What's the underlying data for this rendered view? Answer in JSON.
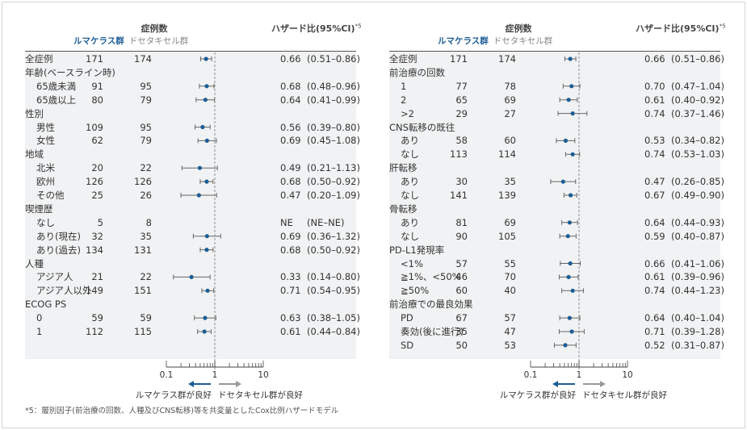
{
  "colors": {
    "accent": "#1c5d94",
    "ci_line": "#666666",
    "arrow_good_rm": "#1c5d94",
    "arrow_good_dt": "#999999",
    "table_bg": "#f1f2f3"
  },
  "header": {
    "count_title": "症例数",
    "arm_rm": "ルマケラス群",
    "arm_dt": "ドセタキセル群",
    "hr_title": "ハザード比(95%CI)",
    "hr_sup": "*5"
  },
  "axis": {
    "ticks": [
      "0.1",
      "1",
      "10"
    ],
    "favors_rm": "ルマケラス群が良好",
    "favors_dt": "ドセタキセル群が良好"
  },
  "footnote": "*5：層別因子(前治療の回数、人種及びCNS転移)等を共変量としたCox比例ハザードモデル",
  "chart_data": [
    {
      "type": "forest",
      "xscale": "log",
      "xlim": [
        0.1,
        10
      ],
      "reference_line": 1,
      "rows": [
        {
          "label": "全症例",
          "indent": false,
          "n_rm": "171",
          "n_dt": "174",
          "hr_text": "0.66",
          "ci_text": "(0.51–0.86)",
          "hr": 0.66,
          "lo": 0.51,
          "hi": 0.86
        },
        {
          "label": "年齢(ベースライン時)",
          "header": true
        },
        {
          "label": "65歳未満",
          "indent": true,
          "n_rm": "91",
          "n_dt": "95",
          "hr_text": "0.68",
          "ci_text": "(0.48–0.96)",
          "hr": 0.68,
          "lo": 0.48,
          "hi": 0.96
        },
        {
          "label": "65歳以上",
          "indent": true,
          "n_rm": "80",
          "n_dt": "79",
          "hr_text": "0.64",
          "ci_text": "(0.41–0.99)",
          "hr": 0.64,
          "lo": 0.41,
          "hi": 0.99
        },
        {
          "label": "性別",
          "header": true
        },
        {
          "label": "男性",
          "indent": true,
          "n_rm": "109",
          "n_dt": "95",
          "hr_text": "0.56",
          "ci_text": "(0.39–0.80)",
          "hr": 0.56,
          "lo": 0.39,
          "hi": 0.8
        },
        {
          "label": "女性",
          "indent": true,
          "n_rm": "62",
          "n_dt": "79",
          "hr_text": "0.69",
          "ci_text": "(0.45–1.08)",
          "hr": 0.69,
          "lo": 0.45,
          "hi": 1.08
        },
        {
          "label": "地域",
          "header": true
        },
        {
          "label": "北米",
          "indent": true,
          "n_rm": "20",
          "n_dt": "22",
          "hr_text": "0.49",
          "ci_text": "(0.21–1.13)",
          "hr": 0.49,
          "lo": 0.21,
          "hi": 1.13
        },
        {
          "label": "欧州",
          "indent": true,
          "n_rm": "126",
          "n_dt": "126",
          "hr_text": "0.68",
          "ci_text": "(0.50–0.92)",
          "hr": 0.68,
          "lo": 0.5,
          "hi": 0.92
        },
        {
          "label": "その他",
          "indent": true,
          "n_rm": "25",
          "n_dt": "26",
          "hr_text": "0.47",
          "ci_text": "(0.20–1.09)",
          "hr": 0.47,
          "lo": 0.2,
          "hi": 1.09
        },
        {
          "label": "喫煙歴",
          "header": true
        },
        {
          "label": "なし",
          "indent": true,
          "n_rm": "5",
          "n_dt": "8",
          "hr_text": "NE",
          "ci_text": "(NE–NE)"
        },
        {
          "label": "あり(現在)",
          "indent": true,
          "n_rm": "32",
          "n_dt": "35",
          "hr_text": "0.69",
          "ci_text": "(0.36–1.32)",
          "hr": 0.69,
          "lo": 0.36,
          "hi": 1.32
        },
        {
          "label": "あり(過去)",
          "indent": true,
          "n_rm": "134",
          "n_dt": "131",
          "hr_text": "0.68",
          "ci_text": "(0.50–0.92)",
          "hr": 0.68,
          "lo": 0.5,
          "hi": 0.92
        },
        {
          "label": "人種",
          "header": true
        },
        {
          "label": "アジア人",
          "indent": true,
          "n_rm": "21",
          "n_dt": "22",
          "hr_text": "0.33",
          "ci_text": "(0.14–0.80)",
          "hr": 0.33,
          "lo": 0.14,
          "hi": 0.8
        },
        {
          "label": "アジア人以外",
          "indent": true,
          "n_rm": "149",
          "n_dt": "151",
          "hr_text": "0.71",
          "ci_text": "(0.54–0.95)",
          "hr": 0.71,
          "lo": 0.54,
          "hi": 0.95
        },
        {
          "label": "ECOG PS",
          "header": true
        },
        {
          "label": "0",
          "indent": true,
          "n_rm": "59",
          "n_dt": "59",
          "hr_text": "0.63",
          "ci_text": "(0.38–1.05)",
          "hr": 0.63,
          "lo": 0.38,
          "hi": 1.05
        },
        {
          "label": "1",
          "indent": true,
          "n_rm": "112",
          "n_dt": "115",
          "hr_text": "0.61",
          "ci_text": "(0.44–0.84)",
          "hr": 0.61,
          "lo": 0.44,
          "hi": 0.84
        }
      ]
    },
    {
      "type": "forest",
      "xscale": "log",
      "xlim": [
        0.1,
        10
      ],
      "reference_line": 1,
      "rows": [
        {
          "label": "全症例",
          "indent": false,
          "n_rm": "171",
          "n_dt": "174",
          "hr_text": "0.66",
          "ci_text": "(0.51–0.86)",
          "hr": 0.66,
          "lo": 0.51,
          "hi": 0.86
        },
        {
          "label": "前治療の回数",
          "header": true
        },
        {
          "label": "1",
          "indent": true,
          "n_rm": "77",
          "n_dt": "78",
          "hr_text": "0.70",
          "ci_text": "(0.47–1.04)",
          "hr": 0.7,
          "lo": 0.47,
          "hi": 1.04
        },
        {
          "label": "2",
          "indent": true,
          "n_rm": "65",
          "n_dt": "69",
          "hr_text": "0.61",
          "ci_text": "(0.40–0.92)",
          "hr": 0.61,
          "lo": 0.4,
          "hi": 0.92
        },
        {
          "label": ">2",
          "indent": true,
          "n_rm": "29",
          "n_dt": "27",
          "hr_text": "0.74",
          "ci_text": "(0.37–1.46)",
          "hr": 0.74,
          "lo": 0.37,
          "hi": 1.46
        },
        {
          "label": "CNS転移の既往",
          "header": true
        },
        {
          "label": "あり",
          "indent": true,
          "n_rm": "58",
          "n_dt": "60",
          "hr_text": "0.53",
          "ci_text": "(0.34–0.82)",
          "hr": 0.53,
          "lo": 0.34,
          "hi": 0.82
        },
        {
          "label": "なし",
          "indent": true,
          "n_rm": "113",
          "n_dt": "114",
          "hr_text": "0.74",
          "ci_text": "(0.53–1.03)",
          "hr": 0.74,
          "lo": 0.53,
          "hi": 1.03
        },
        {
          "label": "肝転移",
          "header": true
        },
        {
          "label": "あり",
          "indent": true,
          "n_rm": "30",
          "n_dt": "35",
          "hr_text": "0.47",
          "ci_text": "(0.26–0.85)",
          "hr": 0.47,
          "lo": 0.26,
          "hi": 0.85
        },
        {
          "label": "なし",
          "indent": true,
          "n_rm": "141",
          "n_dt": "139",
          "hr_text": "0.67",
          "ci_text": "(0.49–0.90)",
          "hr": 0.67,
          "lo": 0.49,
          "hi": 0.9
        },
        {
          "label": "骨転移",
          "header": true
        },
        {
          "label": "あり",
          "indent": true,
          "n_rm": "81",
          "n_dt": "69",
          "hr_text": "0.64",
          "ci_text": "(0.44–0.93)",
          "hr": 0.64,
          "lo": 0.44,
          "hi": 0.93
        },
        {
          "label": "なし",
          "indent": true,
          "n_rm": "90",
          "n_dt": "105",
          "hr_text": "0.59",
          "ci_text": "(0.40–0.87)",
          "hr": 0.59,
          "lo": 0.4,
          "hi": 0.87
        },
        {
          "label": "PD-L1発現率",
          "header": true
        },
        {
          "label": "<1%",
          "indent": true,
          "n_rm": "57",
          "n_dt": "55",
          "hr_text": "0.66",
          "ci_text": "(0.41–1.06)",
          "hr": 0.66,
          "lo": 0.41,
          "hi": 1.06
        },
        {
          "label": "≧1%、<50%",
          "indent": true,
          "n_rm": "46",
          "n_dt": "70",
          "hr_text": "0.61",
          "ci_text": "(0.39–0.96)",
          "hr": 0.61,
          "lo": 0.39,
          "hi": 0.96
        },
        {
          "label": "≧50%",
          "indent": true,
          "n_rm": "60",
          "n_dt": "40",
          "hr_text": "0.74",
          "ci_text": "(0.44–1.23)",
          "hr": 0.74,
          "lo": 0.44,
          "hi": 1.23
        },
        {
          "label": "前治療での最良効果",
          "header": true
        },
        {
          "label": "PD",
          "indent": true,
          "n_rm": "67",
          "n_dt": "57",
          "hr_text": "0.64",
          "ci_text": "(0.40–1.04)",
          "hr": 0.64,
          "lo": 0.4,
          "hi": 1.04
        },
        {
          "label": "奏効(後に進行)",
          "indent": true,
          "n_rm": "35",
          "n_dt": "47",
          "hr_text": "0.71",
          "ci_text": "(0.39–1.28)",
          "hr": 0.71,
          "lo": 0.39,
          "hi": 1.28
        },
        {
          "label": "SD",
          "indent": true,
          "n_rm": "50",
          "n_dt": "53",
          "hr_text": "0.52",
          "ci_text": "(0.31–0.87)",
          "hr": 0.52,
          "lo": 0.31,
          "hi": 0.87
        }
      ]
    }
  ]
}
